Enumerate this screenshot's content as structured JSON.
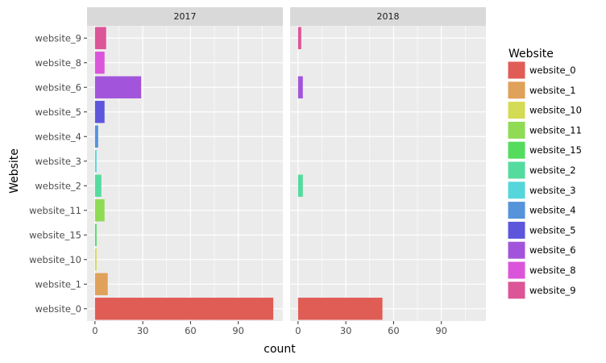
{
  "chart_data": {
    "type": "bar",
    "orientation": "horizontal",
    "facet_variable": "year",
    "facets": [
      "2017",
      "2018"
    ],
    "categories": [
      "website_0",
      "website_1",
      "website_10",
      "website_15",
      "website_11",
      "website_2",
      "website_3",
      "website_4",
      "website_5",
      "website_6",
      "website_8",
      "website_9"
    ],
    "values": {
      "2017": {
        "website_0": 112,
        "website_1": 8,
        "website_10": 1,
        "website_15": 1,
        "website_11": 6,
        "website_2": 4,
        "website_3": 1,
        "website_4": 2,
        "website_5": 6,
        "website_6": 29,
        "website_8": 6,
        "website_9": 7
      },
      "2018": {
        "website_0": 53,
        "website_2": 3,
        "website_6": 3,
        "website_9": 2
      }
    },
    "xlabel": "count",
    "ylabel": "Website",
    "xlim": [
      -5,
      118
    ],
    "xticks": [
      0,
      30,
      60,
      90
    ],
    "grid": true,
    "legend": {
      "title": "Website",
      "placement": "right",
      "entries": [
        "website_0",
        "website_1",
        "website_10",
        "website_11",
        "website_15",
        "website_2",
        "website_3",
        "website_4",
        "website_5",
        "website_6",
        "website_8",
        "website_9"
      ]
    },
    "colors": {
      "website_0": "#E05D55",
      "website_1": "#E0A15A",
      "website_10": "#D4DB55",
      "website_11": "#8FDB55",
      "website_15": "#55DB5E",
      "website_2": "#55DB9E",
      "website_3": "#55D6DB",
      "website_4": "#5593DB",
      "website_5": "#5D55DB",
      "website_6": "#A255DB",
      "website_8": "#DB55DB",
      "website_9": "#DB5597"
    },
    "panel_background": "#EBEBEB",
    "strip_background": "#D9D9D9"
  }
}
